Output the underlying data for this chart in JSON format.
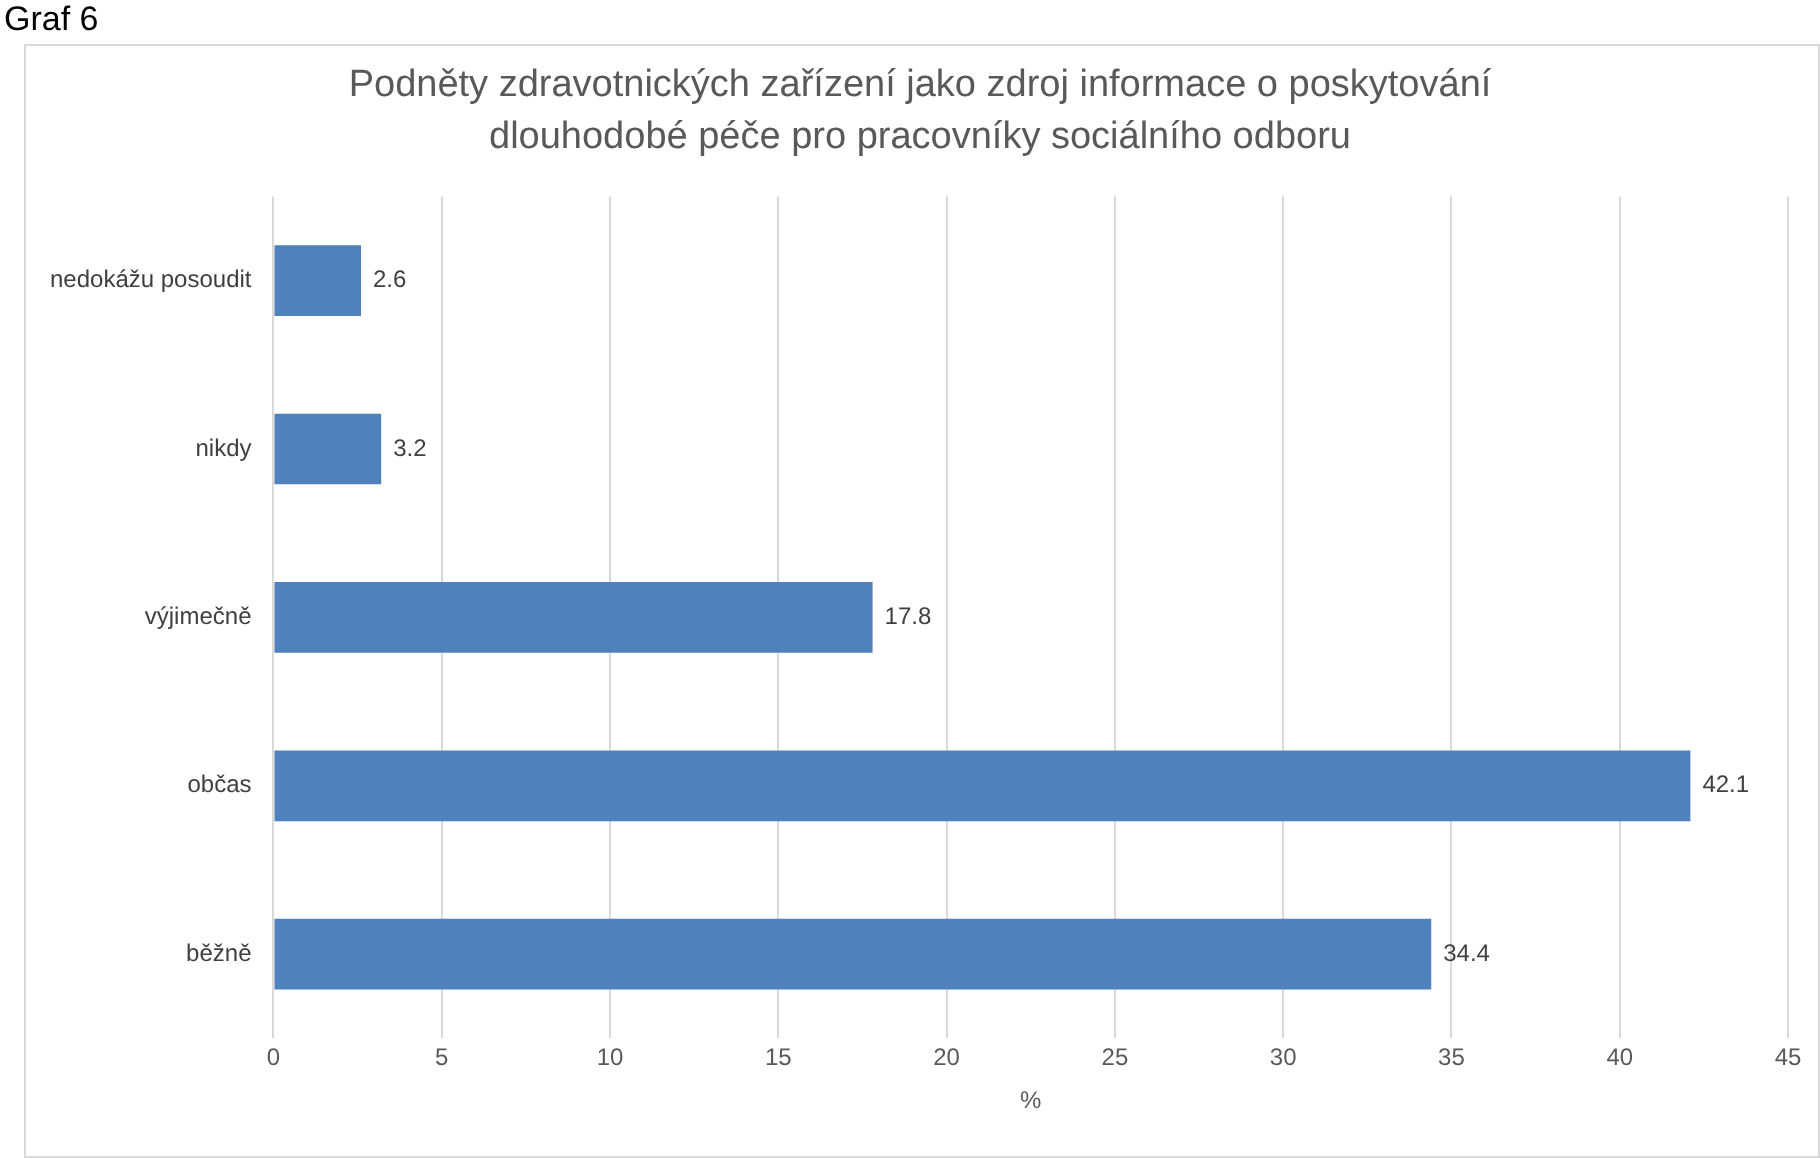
{
  "chart_data": {
    "type": "bar",
    "orientation": "horizontal",
    "title": "Podněty zdravotnických zařízení jako zdroj informace o poskytování dlouhodobé péče pro pracovníky sociálního odboru",
    "categories": [
      "nedokážu posoudit",
      "nikdy",
      "výjimečně",
      "občas",
      "běžně"
    ],
    "values": [
      2.6,
      3.2,
      17.8,
      42.1,
      34.4
    ],
    "color": "#4f81bd",
    "xlabel": "%",
    "xlim": [
      0,
      45
    ],
    "xticks": [
      0,
      5,
      10,
      15,
      20,
      25,
      30,
      35,
      40,
      45
    ],
    "grid": "x",
    "data_labels": true,
    "legend": false,
    "annotations": [
      "Graf 6"
    ]
  }
}
